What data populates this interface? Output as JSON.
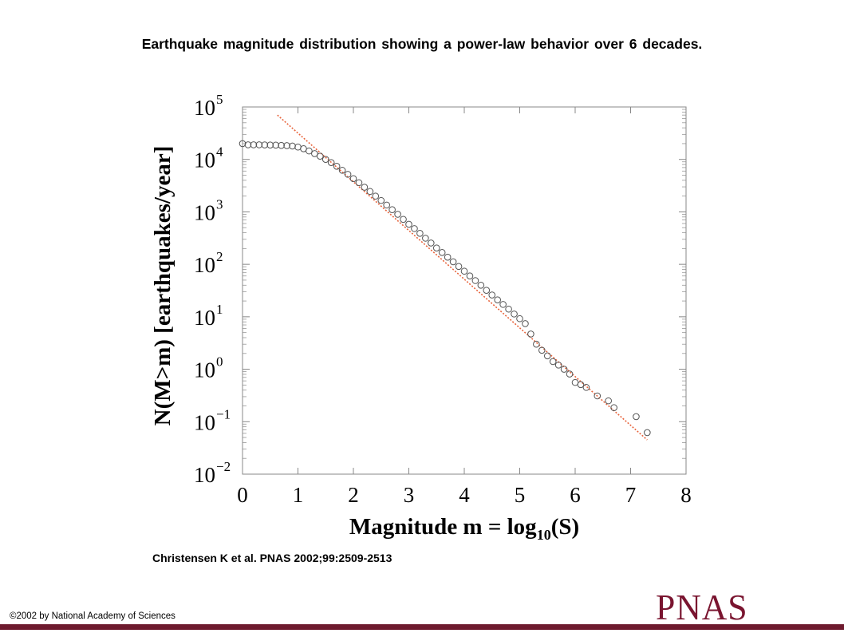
{
  "title": "Earthquake magnitude distribution showing a power-law behavior over 6 decades.",
  "citation": "Christensen K et al. PNAS 2002;99:2509-2513",
  "copyright": "©2002 by National Academy of Sciences",
  "logo_text": "PNAS",
  "colors": {
    "brand": "#6e1a2e",
    "fit_line": "#e8643c",
    "markers": "#555555"
  },
  "chart_data": {
    "type": "scatter",
    "xlabel": "Magnitude m = log10(S)",
    "ylabel": "N(M>m) [earthquakes/year]",
    "xlim": [
      0,
      8
    ],
    "ylim_log10": [
      -2,
      5
    ],
    "yscale": "log",
    "x_ticks": [
      "0",
      "1",
      "2",
      "3",
      "4",
      "5",
      "6",
      "7",
      "8"
    ],
    "y_ticks": [
      {
        "base": "10",
        "exp": "5"
      },
      {
        "base": "10",
        "exp": "4"
      },
      {
        "base": "10",
        "exp": "3"
      },
      {
        "base": "10",
        "exp": "2"
      },
      {
        "base": "10",
        "exp": "1"
      },
      {
        "base": "10",
        "exp": "0"
      },
      {
        "base": "10",
        "exp": "−1"
      },
      {
        "base": "10",
        "exp": "−2"
      }
    ],
    "fit_line": {
      "x": [
        0.63,
        7.3
      ],
      "y": [
        70000,
        0.045
      ]
    },
    "series": [
      {
        "x": [
          0.0,
          0.1,
          0.2,
          0.3,
          0.4,
          0.5,
          0.6,
          0.7,
          0.8,
          0.9,
          1.0,
          1.1,
          1.2,
          1.3,
          1.4,
          1.5,
          1.6,
          1.7,
          1.8,
          1.9,
          2.0,
          2.1,
          2.2,
          2.3,
          2.4,
          2.5,
          2.6,
          2.7,
          2.8,
          2.9,
          3.0,
          3.1,
          3.2,
          3.3,
          3.4,
          3.5,
          3.6,
          3.7,
          3.8,
          3.9,
          4.0,
          4.1,
          4.2,
          4.3,
          4.4,
          4.5,
          4.6,
          4.7,
          4.8,
          4.9,
          5.0,
          5.1,
          5.2,
          5.3,
          5.4,
          5.5,
          5.6,
          5.7,
          5.8,
          5.9,
          6.0,
          6.1,
          6.2,
          6.4,
          6.6,
          6.7,
          7.1,
          7.3
        ],
        "y": [
          20000,
          19000,
          19000,
          19000,
          18900,
          18800,
          18700,
          18500,
          18300,
          18000,
          17200,
          16000,
          14500,
          12900,
          11500,
          10000,
          8700,
          7400,
          6200,
          5200,
          4300,
          3600,
          2950,
          2450,
          2000,
          1650,
          1350,
          1100,
          900,
          720,
          580,
          480,
          390,
          315,
          255,
          205,
          168,
          137,
          112,
          91,
          74,
          60,
          49,
          40,
          32,
          26,
          21,
          17.2,
          14,
          11.3,
          9.2,
          7.4,
          4.7,
          3.0,
          2.3,
          1.8,
          1.4,
          1.2,
          1.0,
          0.81,
          0.56,
          0.51,
          0.45,
          0.31,
          0.25,
          0.185,
          0.125,
          0.062
        ]
      }
    ]
  }
}
